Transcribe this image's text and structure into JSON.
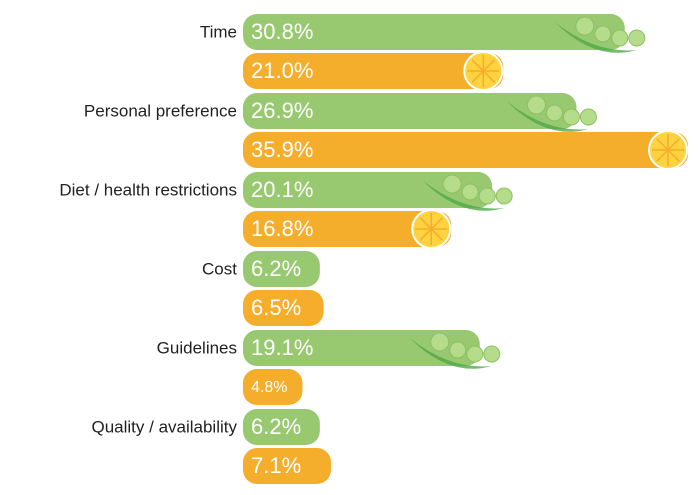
{
  "chart_data": {
    "type": "bar",
    "orientation": "horizontal",
    "categories": [
      "Time",
      "Personal preference",
      "Diet / health restrictions",
      "Cost",
      "Guidelines",
      "Quality /  availability"
    ],
    "series": [
      {
        "color": "#98c970",
        "values": [
          30.8,
          26.9,
          20.1,
          6.2,
          19.1,
          6.2
        ],
        "value_labels": [
          "30.8%",
          "26.9%",
          "20.1%",
          "6.2%",
          "19.1%",
          "6.2%"
        ]
      },
      {
        "color": "#f5ad2c",
        "values": [
          21.0,
          35.9,
          16.8,
          6.5,
          4.8,
          7.1
        ],
        "value_labels": [
          "21.0%",
          "35.9%",
          "16.8%",
          "6.5%",
          "4.8%",
          "7.1%"
        ]
      }
    ]
  }
}
